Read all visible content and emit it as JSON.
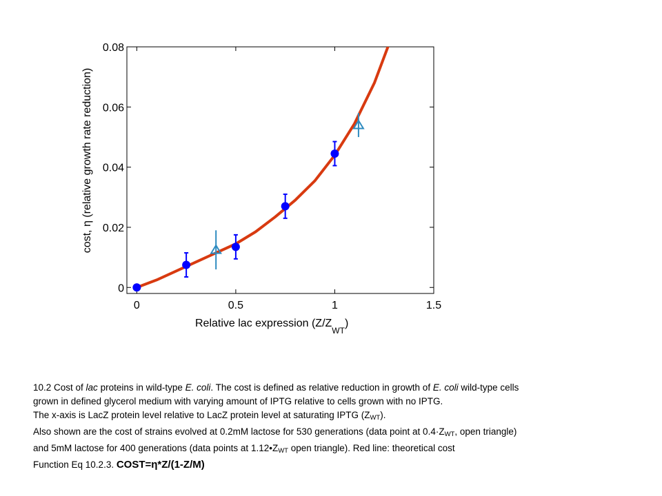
{
  "chart_data": {
    "type": "scatter",
    "xlabel_main": "Relative lac expression (Z/Z",
    "xlabel_sub": "WT",
    "xlabel_end": ")",
    "ylabel": "cost, η (relative growth rate reduction)",
    "xlim": [
      -0.05,
      1.5
    ],
    "ylim": [
      -0.002,
      0.08
    ],
    "x_ticks": [
      0,
      0.5,
      1,
      1.5
    ],
    "x_tick_labels": [
      "0",
      "0.5",
      "1",
      "1.5"
    ],
    "y_ticks": [
      0,
      0.02,
      0.04,
      0.06,
      0.08
    ],
    "y_tick_labels": [
      "0",
      "0.02",
      "0.04",
      "0.06",
      "0.08"
    ],
    "grid": false,
    "series": [
      {
        "marker": "filled-circle",
        "color": "#0000ff",
        "points": [
          {
            "x": 0,
            "y": 0.0,
            "err": 0
          },
          {
            "x": 0.25,
            "y": 0.0075,
            "err": 0.004
          },
          {
            "x": 0.5,
            "y": 0.0135,
            "err": 0.004
          },
          {
            "x": 0.75,
            "y": 0.027,
            "err": 0.004
          },
          {
            "x": 1.0,
            "y": 0.0445,
            "err": 0.004
          }
        ]
      },
      {
        "marker": "open-triangle",
        "color": "#2e8bc0",
        "points": [
          {
            "x": 0.4,
            "y": 0.0125,
            "err": 0.0065
          },
          {
            "x": 1.12,
            "y": 0.054,
            "err": 0.004
          }
        ]
      },
      {
        "type": "line",
        "color": "#d83a10",
        "x": [
          0,
          0.1,
          0.2,
          0.3,
          0.4,
          0.5,
          0.6,
          0.7,
          0.8,
          0.9,
          1.0,
          1.1,
          1.2,
          1.28
        ],
        "y": [
          0.0,
          0.0025,
          0.0055,
          0.0085,
          0.0115,
          0.0145,
          0.0185,
          0.0235,
          0.029,
          0.0355,
          0.044,
          0.0545,
          0.068,
          0.082
        ]
      }
    ]
  },
  "caption": {
    "line1_pre": "10.2 Cost of ",
    "line1_italic1": "lac",
    "line1_mid": " proteins in wild-type ",
    "line1_italic2": "E. coli",
    "line1_mid2": ".  The cost is defined as relative reduction in growth of ",
    "line1_italic3": "E. coli",
    "line1_post": " wild-type cells",
    "line2": "grown in defined glycerol medium with varying amount of IPTG relative to cells grown with no IPTG.",
    "line3_pre": "The x-axis is LacZ protein level relative to LacZ protein level at saturating IPTG (Z",
    "line3_sub": "WT",
    "line3_post": ").",
    "line4_pre": " Also shown are the cost of strains evolved at 0.2mM lactose for 530 generations (data point at 0.4·Z",
    "line4_sub": "WT",
    "line4_post": ", open triangle)",
    "line5_pre": "and 5mM lactose for 400 generations (data points at 1.12•Z",
    "line5_sub": "WT",
    "line5_post": " open triangle). Red line: theoretical cost",
    "line6_pre": "Function Eq 10.2.3. ",
    "line6_formula": "COST=η*Z/(1-Z/M)"
  }
}
